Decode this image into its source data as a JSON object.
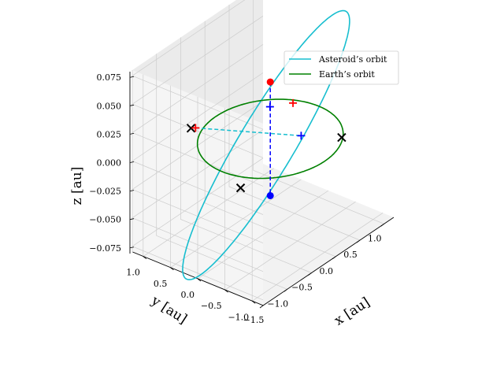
{
  "chart_data": {
    "type": "line",
    "projection": "3d",
    "title": "",
    "xlabel": "x [au]",
    "ylabel": "y [au]",
    "zlabel": "z [au]",
    "xlim": [
      -1.5,
      1.2
    ],
    "ylim": [
      -1.2,
      1.2
    ],
    "zlim": [
      -0.08,
      0.08
    ],
    "grid": true,
    "legend_position": "top-right",
    "x_ticks": [
      "−1.5",
      "−1.0",
      "−0.5",
      "0.0",
      "0.5",
      "1.0"
    ],
    "x_tick_values": [
      -1.5,
      -1.0,
      -0.5,
      0.0,
      0.5,
      1.0
    ],
    "y_ticks": [
      "1.0",
      "0.5",
      "0.0",
      "−0.5",
      "−1.0"
    ],
    "y_tick_values": [
      1.0,
      0.5,
      0.0,
      -0.5,
      -1.0
    ],
    "z_ticks": [
      "0.075",
      "0.050",
      "0.025",
      "0.000",
      "−0.025",
      "−0.050",
      "−0.075"
    ],
    "z_tick_values": [
      0.075,
      0.05,
      0.025,
      0.0,
      -0.025,
      -0.05,
      -0.075
    ],
    "series": [
      {
        "name": "Asteroid’s orbit",
        "color": "#17becf",
        "shape": "ellipse",
        "a": 1.15,
        "e": 0.05,
        "inclination_deg": 5.2,
        "node_angle_deg": 225,
        "periapsis_argument_deg": 90
      },
      {
        "name": "Earth’s orbit",
        "color": "#008000",
        "shape": "circle",
        "a": 1.0,
        "e": 0.0,
        "inclination_deg": 0
      }
    ],
    "points": [
      {
        "label": "asteroid-position",
        "marker": "circle",
        "color": "#ff0000",
        "x": 0.0,
        "y": 0.0,
        "z": 0.05
      },
      {
        "label": "asteroid-projection",
        "marker": "circle",
        "color": "#0000ff",
        "x": 0.0,
        "y": 0.0,
        "z": -0.05
      },
      {
        "label": "cross-1",
        "marker": "x",
        "color": "#000000",
        "x": -0.85,
        "y": 0.7,
        "z": 0.02
      },
      {
        "label": "cross-2",
        "marker": "x",
        "color": "#000000",
        "x": -0.95,
        "y": -0.3,
        "z": -0.01
      },
      {
        "label": "cross-3",
        "marker": "x",
        "color": "#000000",
        "x": 0.8,
        "y": -0.6,
        "z": -0.01
      },
      {
        "label": "plus-red-1",
        "marker": "plus",
        "color": "#ff0000",
        "x": -0.7,
        "y": 0.75,
        "z": 0.015
      },
      {
        "label": "plus-red-2",
        "marker": "plus",
        "color": "#ff0000",
        "x": 0.75,
        "y": 0.25,
        "z": 0.005
      },
      {
        "label": "plus-blue-1",
        "marker": "plus",
        "color": "#0000ff",
        "x": 0.5,
        "y": 0.45,
        "z": 0.005
      },
      {
        "label": "plus-blue-2",
        "marker": "plus",
        "color": "#0000ff",
        "x": 0.3,
        "y": -0.3,
        "z": 0.0
      }
    ],
    "lines": [
      {
        "label": "vertical-dashed",
        "color": "#0000ff",
        "style": "dashed",
        "from": [
          0.0,
          0.0,
          0.05
        ],
        "to": [
          0.0,
          0.0,
          -0.05
        ]
      },
      {
        "label": "line-of-nodes-dashed",
        "color": "#17becf",
        "style": "dashed",
        "from": [
          -0.7,
          0.75,
          0.015
        ],
        "to": [
          0.3,
          -0.3,
          0.0
        ]
      }
    ]
  }
}
